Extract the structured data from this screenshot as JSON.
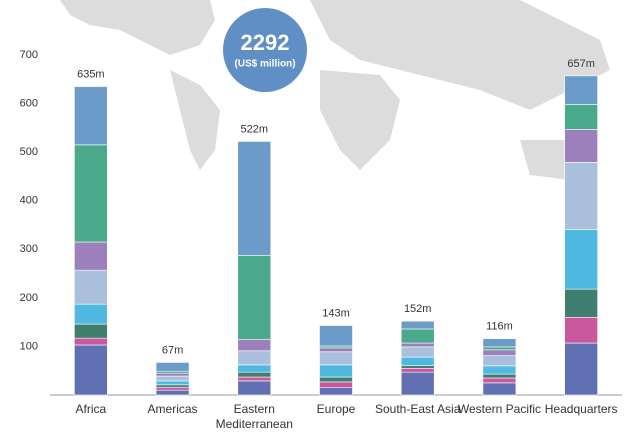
{
  "chart_data": {
    "type": "stacked_bar",
    "annotation": {
      "value": "2292",
      "unit": "(US$ million)"
    },
    "categories": [
      "Africa",
      "Americas",
      "Eastern Mediterranean",
      "Europe",
      "South-East Asia",
      "Western Pacific",
      "Headquarters"
    ],
    "totals": [
      635,
      67,
      522,
      143,
      152,
      116,
      657
    ],
    "total_labels": [
      "635m",
      "67m",
      "522m",
      "143m",
      "152m",
      "116m",
      "657m"
    ],
    "series": [
      {
        "color": "#6170b3",
        "values": [
          103,
          10,
          29,
          15,
          47,
          25,
          107
        ]
      },
      {
        "color": "#c9589e",
        "values": [
          14,
          6,
          8,
          12,
          8,
          10,
          53
        ]
      },
      {
        "color": "#3f7f6f",
        "values": [
          29,
          5,
          10,
          10,
          6,
          8,
          58
        ]
      },
      {
        "color": "#4fb9e2",
        "values": [
          41,
          8,
          15,
          25,
          17,
          17,
          123
        ]
      },
      {
        "color": "#a9bfdc",
        "values": [
          70,
          10,
          29,
          27,
          21,
          21,
          138
        ]
      },
      {
        "color": "#9b80bb",
        "values": [
          58,
          6,
          23,
          8,
          8,
          12,
          68
        ]
      },
      {
        "color": "#4ba98b",
        "values": [
          200,
          4,
          173,
          4,
          29,
          6,
          51
        ]
      },
      {
        "color": "#6b9bc9",
        "values": [
          120,
          18,
          235,
          42,
          16,
          17,
          59
        ]
      }
    ],
    "ylim": [
      0,
      700
    ],
    "yticks": [
      100,
      200,
      300,
      400,
      500,
      600,
      700
    ]
  }
}
